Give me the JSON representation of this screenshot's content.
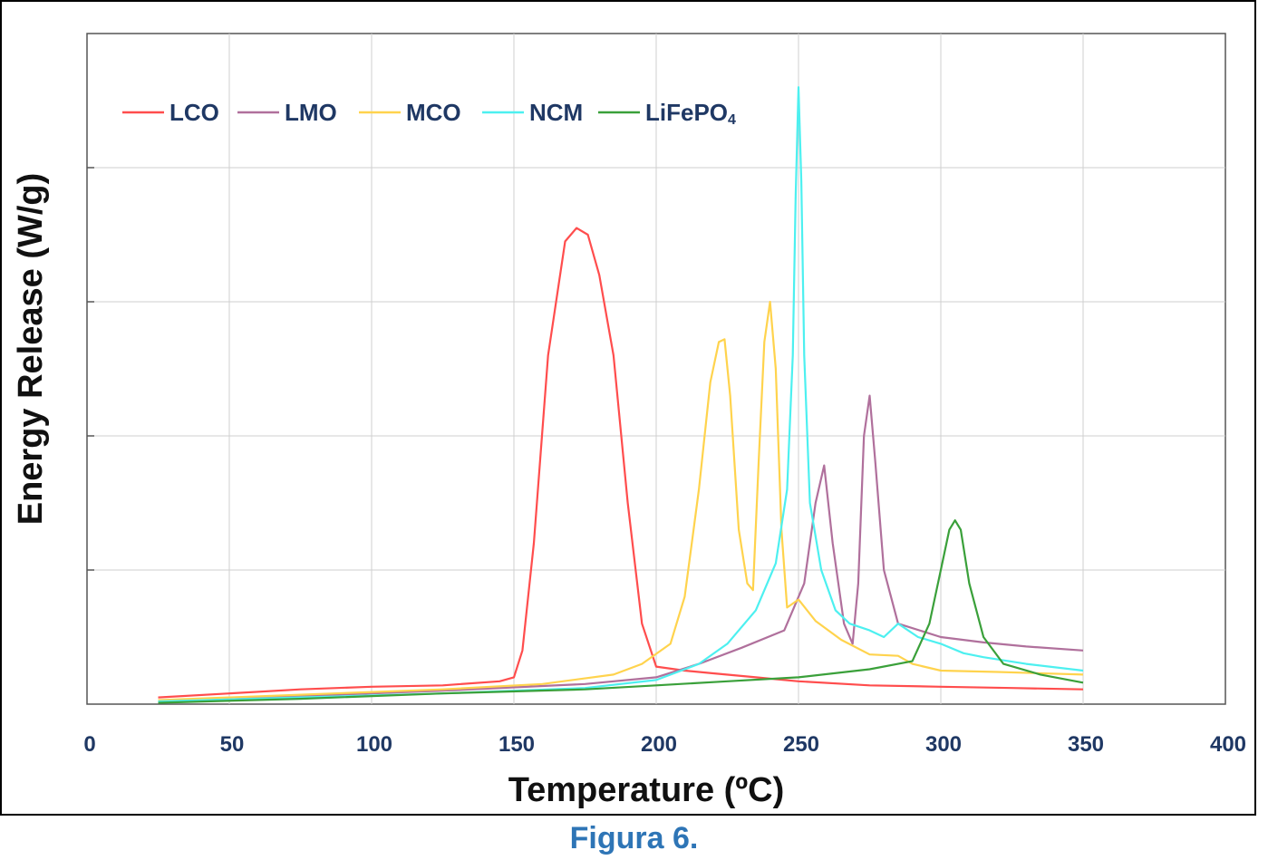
{
  "caption": "Figura 6.",
  "chart_data": {
    "type": "line",
    "xlabel": "Temperature (ºC)",
    "ylabel": "Energy Release (W/g)",
    "xlim": [
      0,
      400
    ],
    "ylim": [
      0,
      5
    ],
    "x_ticks": [
      "0",
      "50",
      "100",
      "150",
      "200",
      "250",
      "300",
      "350",
      "400"
    ],
    "y_tick_labels_shown": false,
    "grid": true,
    "legend_position": "top-left",
    "series": [
      {
        "name": "LCO",
        "color": "#ff4d4d",
        "points": [
          [
            25,
            0.05
          ],
          [
            50,
            0.08
          ],
          [
            75,
            0.11
          ],
          [
            100,
            0.13
          ],
          [
            125,
            0.14
          ],
          [
            145,
            0.17
          ],
          [
            150,
            0.2
          ],
          [
            153,
            0.4
          ],
          [
            157,
            1.2
          ],
          [
            162,
            2.6
          ],
          [
            168,
            3.45
          ],
          [
            172,
            3.55
          ],
          [
            176,
            3.5
          ],
          [
            180,
            3.2
          ],
          [
            185,
            2.6
          ],
          [
            190,
            1.5
          ],
          [
            195,
            0.6
          ],
          [
            200,
            0.28
          ],
          [
            210,
            0.25
          ],
          [
            220,
            0.23
          ],
          [
            235,
            0.2
          ],
          [
            250,
            0.17
          ],
          [
            275,
            0.14
          ],
          [
            300,
            0.13
          ],
          [
            325,
            0.12
          ],
          [
            350,
            0.11
          ]
        ]
      },
      {
        "name": "LMO",
        "color": "#b0709c",
        "points": [
          [
            25,
            0.02
          ],
          [
            75,
            0.06
          ],
          [
            125,
            0.1
          ],
          [
            175,
            0.15
          ],
          [
            200,
            0.2
          ],
          [
            215,
            0.3
          ],
          [
            230,
            0.42
          ],
          [
            245,
            0.55
          ],
          [
            252,
            0.9
          ],
          [
            256,
            1.5
          ],
          [
            259,
            1.78
          ],
          [
            262,
            1.2
          ],
          [
            266,
            0.6
          ],
          [
            269,
            0.45
          ],
          [
            271,
            0.9
          ],
          [
            273,
            2.0
          ],
          [
            275,
            2.3
          ],
          [
            277,
            1.8
          ],
          [
            280,
            1.0
          ],
          [
            285,
            0.6
          ],
          [
            300,
            0.5
          ],
          [
            315,
            0.46
          ],
          [
            330,
            0.43
          ],
          [
            350,
            0.4
          ]
        ]
      },
      {
        "name": "MCO",
        "color": "#ffd34d",
        "points": [
          [
            25,
            0.03
          ],
          [
            75,
            0.07
          ],
          [
            125,
            0.11
          ],
          [
            160,
            0.15
          ],
          [
            185,
            0.22
          ],
          [
            195,
            0.3
          ],
          [
            205,
            0.45
          ],
          [
            210,
            0.8
          ],
          [
            215,
            1.6
          ],
          [
            219,
            2.4
          ],
          [
            222,
            2.7
          ],
          [
            224,
            2.72
          ],
          [
            226,
            2.3
          ],
          [
            229,
            1.3
          ],
          [
            232,
            0.9
          ],
          [
            234,
            0.85
          ],
          [
            236,
            1.8
          ],
          [
            238,
            2.7
          ],
          [
            240,
            3.0
          ],
          [
            242,
            2.5
          ],
          [
            244,
            1.3
          ],
          [
            246,
            0.72
          ],
          [
            250,
            0.78
          ],
          [
            256,
            0.62
          ],
          [
            265,
            0.48
          ],
          [
            275,
            0.37
          ],
          [
            285,
            0.36
          ],
          [
            290,
            0.3
          ],
          [
            300,
            0.25
          ],
          [
            320,
            0.24
          ],
          [
            350,
            0.22
          ]
        ]
      },
      {
        "name": "NCM",
        "color": "#4df0f0",
        "points": [
          [
            25,
            0.02
          ],
          [
            75,
            0.05
          ],
          [
            125,
            0.08
          ],
          [
            175,
            0.12
          ],
          [
            200,
            0.18
          ],
          [
            215,
            0.3
          ],
          [
            225,
            0.45
          ],
          [
            235,
            0.7
          ],
          [
            242,
            1.05
          ],
          [
            246,
            1.6
          ],
          [
            248,
            2.6
          ],
          [
            249,
            3.8
          ],
          [
            250,
            4.6
          ],
          [
            251,
            3.9
          ],
          [
            252,
            2.6
          ],
          [
            254,
            1.5
          ],
          [
            258,
            1.0
          ],
          [
            263,
            0.7
          ],
          [
            268,
            0.6
          ],
          [
            275,
            0.55
          ],
          [
            280,
            0.5
          ],
          [
            285,
            0.6
          ],
          [
            292,
            0.5
          ],
          [
            300,
            0.45
          ],
          [
            308,
            0.38
          ],
          [
            315,
            0.35
          ],
          [
            330,
            0.3
          ],
          [
            350,
            0.25
          ]
        ]
      },
      {
        "name": "LiFePO4",
        "color": "#3aa03a",
        "points": [
          [
            25,
            0.01
          ],
          [
            75,
            0.04
          ],
          [
            125,
            0.08
          ],
          [
            175,
            0.11
          ],
          [
            200,
            0.14
          ],
          [
            225,
            0.17
          ],
          [
            250,
            0.2
          ],
          [
            275,
            0.26
          ],
          [
            290,
            0.32
          ],
          [
            296,
            0.6
          ],
          [
            300,
            1.0
          ],
          [
            303,
            1.3
          ],
          [
            305,
            1.37
          ],
          [
            307,
            1.3
          ],
          [
            310,
            0.9
          ],
          [
            315,
            0.5
          ],
          [
            322,
            0.3
          ],
          [
            335,
            0.22
          ],
          [
            350,
            0.16
          ]
        ]
      }
    ]
  }
}
